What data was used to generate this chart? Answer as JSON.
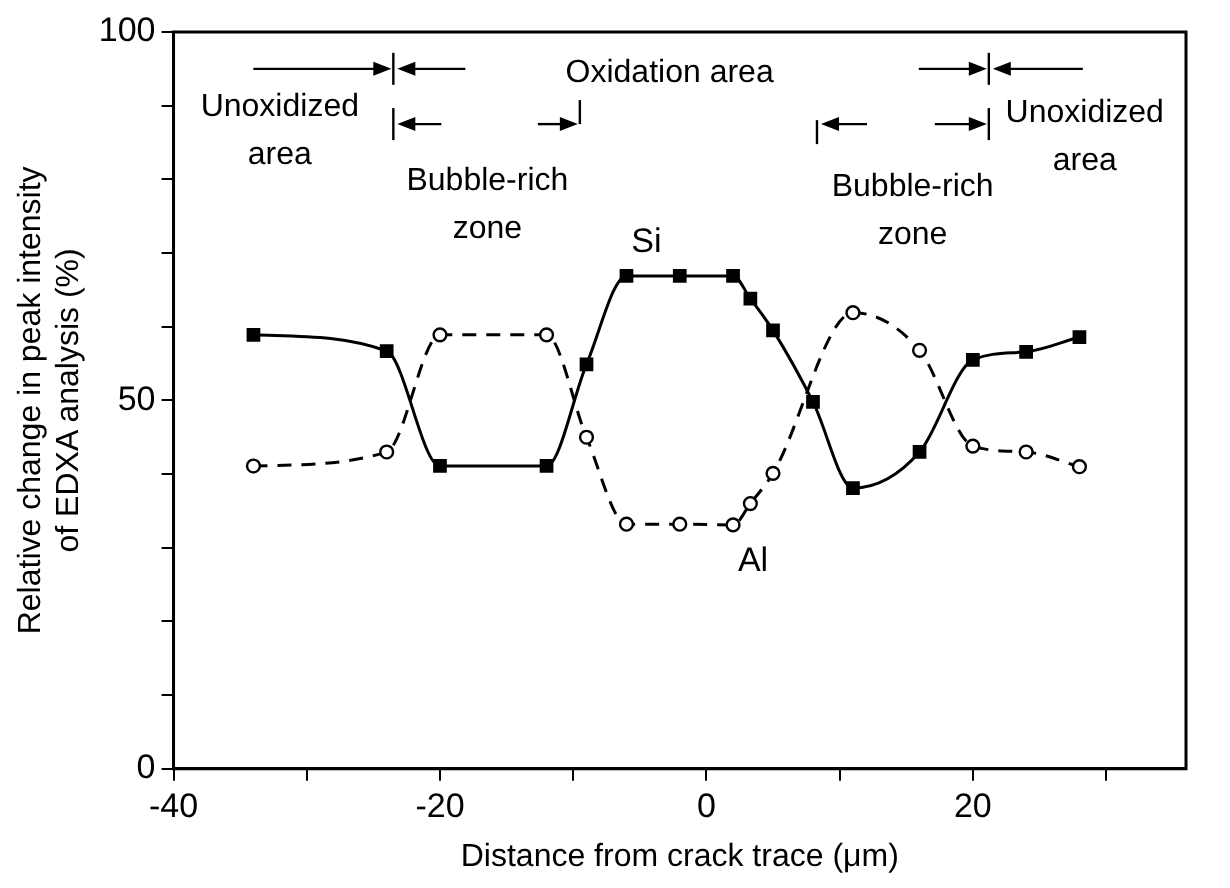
{
  "chart_data": {
    "type": "line",
    "xlabel": "Distance from crack trace (μm)",
    "ylabel": "Relative change in peak intensity\nof EDXA analysis (%)",
    "xlim": [
      -40,
      36
    ],
    "xticks": [
      -40,
      {
        "value": -30,
        "label": null
      },
      -20,
      {
        "value": -10,
        "label": null
      },
      0,
      {
        "value": 10,
        "label": null
      },
      20,
      {
        "value": 30,
        "label": null
      }
    ],
    "ylim": [
      0,
      100
    ],
    "yticks": [
      0,
      {
        "value": 10,
        "label": null
      },
      {
        "value": 20,
        "label": null
      },
      {
        "value": 30,
        "label": null
      },
      {
        "value": 40,
        "label": null
      },
      50,
      {
        "value": 60,
        "label": null
      },
      {
        "value": 70,
        "label": null
      },
      {
        "value": 80,
        "label": null
      },
      {
        "value": 90,
        "label": null
      },
      100
    ],
    "grid": false,
    "legend": false,
    "series": [
      {
        "name": "Si",
        "color": "#000000",
        "marker": "square",
        "line_style": "solid",
        "x": [
          -34,
          -24,
          -20,
          -12,
          -9,
          -6,
          -2,
          2,
          3.3,
          5,
          8,
          11,
          16,
          20,
          24,
          28
        ],
        "values": [
          58.9,
          56.7,
          41.1,
          41.1,
          54.9,
          66.9,
          66.9,
          66.9,
          63.8,
          59.5,
          49.8,
          38.1,
          43,
          55.5,
          56.6,
          58.6
        ]
      },
      {
        "name": "Al",
        "color": "#000000",
        "marker": "circle",
        "line_style": "dashed",
        "x": [
          -34,
          -24,
          -20,
          -12,
          -9,
          -6,
          -2,
          2,
          3.3,
          5,
          11,
          16,
          20,
          24,
          28
        ],
        "values": [
          41.1,
          43,
          58.9,
          58.9,
          45,
          33.2,
          33.2,
          33.1,
          36,
          40.1,
          61.9,
          56.8,
          43.8,
          43,
          41
        ]
      }
    ],
    "annotations": [
      "Unoxidized area",
      "Oxidation area",
      "Bubble-rich zone",
      "Bubble-rich zone",
      "Unoxidized area"
    ]
  }
}
